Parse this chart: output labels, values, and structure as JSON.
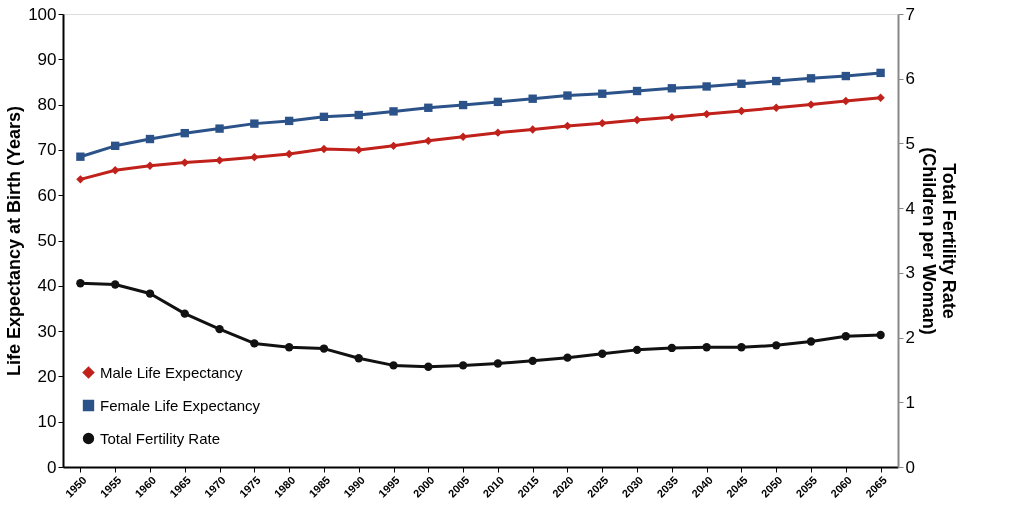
{
  "chart_data": {
    "type": "line",
    "ylabel": "Life Expectancy at Birth (Years)",
    "y2label": "Total Fertility Rate\n(Children per Woman)",
    "categories": [
      "1950",
      "1955",
      "1960",
      "1965",
      "1970",
      "1975",
      "1980",
      "1985",
      "1990",
      "1995",
      "2000",
      "2005",
      "2010",
      "2015",
      "2020",
      "2025",
      "2030",
      "2035",
      "2040",
      "2045",
      "2050",
      "2055",
      "2060",
      "2065"
    ],
    "series": [
      {
        "name": "Male Life Expectancy",
        "color": "#c0211b",
        "marker": "diamond",
        "values": [
          63.5,
          65.5,
          66.5,
          67.2,
          67.7,
          68.4,
          69.1,
          70.2,
          70.0,
          70.9,
          72.0,
          72.9,
          73.8,
          74.5,
          75.3,
          75.9,
          76.6,
          77.2,
          77.9,
          78.6,
          79.3,
          80.0,
          80.8,
          81.5
        ]
      },
      {
        "name": "Female Life Expectancy",
        "color": "#2b5289",
        "marker": "square",
        "values": [
          68.5,
          70.9,
          72.4,
          73.7,
          74.7,
          75.8,
          76.4,
          77.3,
          77.7,
          78.5,
          79.3,
          79.9,
          80.6,
          81.3,
          82.0,
          82.4,
          83.0,
          83.6,
          84.0,
          84.6,
          85.2,
          85.8,
          86.3,
          87.0
        ]
      },
      {
        "name": "Total Fertility Rate",
        "color": "#111111",
        "marker": "circle",
        "axis": "y2",
        "values": [
          2.84,
          2.82,
          2.68,
          2.37,
          2.13,
          1.91,
          1.85,
          1.83,
          1.68,
          1.57,
          1.55,
          1.57,
          1.6,
          1.64,
          1.69,
          1.75,
          1.81,
          1.84,
          1.85,
          1.85,
          1.88,
          1.94,
          2.02,
          2.04
        ]
      }
    ],
    "ylim": [
      0,
      100
    ],
    "yticks": [
      0,
      10,
      20,
      30,
      40,
      50,
      60,
      70,
      80,
      90,
      100
    ],
    "y2lim": [
      0,
      7
    ],
    "y2ticks": [
      0,
      1,
      2,
      3,
      4,
      5,
      6,
      7
    ],
    "grid": false,
    "legend": "bottom left",
    "line_style": "solid"
  }
}
